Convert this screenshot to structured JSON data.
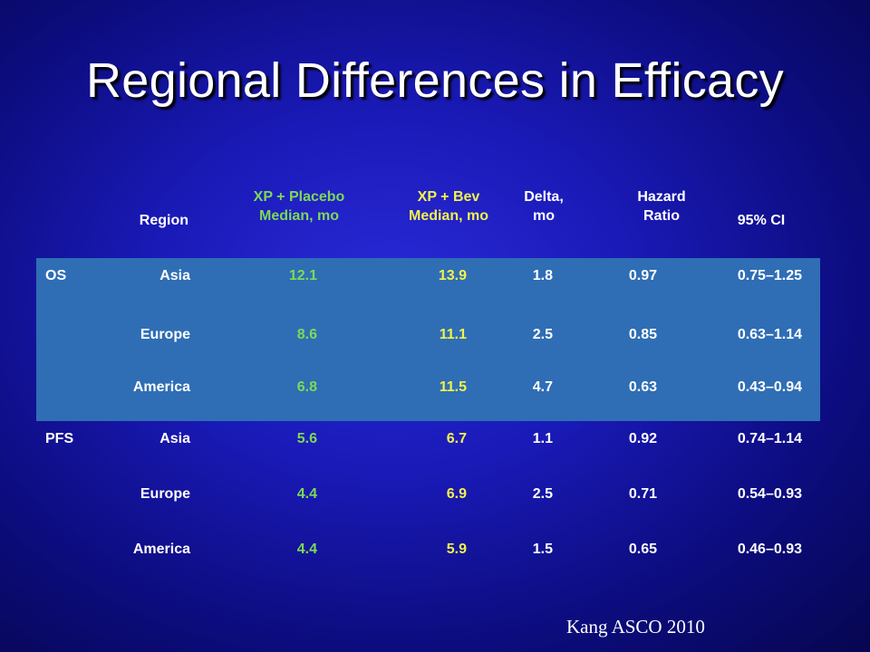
{
  "slide": {
    "title": "Regional Differences in Efficacy",
    "citation": "Kang ASCO 2010"
  },
  "table": {
    "headers": {
      "region": "Region",
      "placebo_line1": "XP + Placebo",
      "placebo_line2": "Median, mo",
      "bev_line1": "XP + Bev",
      "bev_line2": "Median, mo",
      "delta_line1": "Delta,",
      "delta_line2": "mo",
      "hr_line1": "Hazard",
      "hr_line2": "Ratio",
      "ci": "95% CI"
    },
    "rows": [
      {
        "metric": "OS",
        "region": "Asia",
        "placebo": "12.1",
        "bev": "13.9",
        "delta": "1.8",
        "hr": "0.97",
        "ci": "0.75–1.25"
      },
      {
        "metric": "",
        "region": "Europe",
        "placebo": "8.6",
        "bev": "11.1",
        "delta": "2.5",
        "hr": "0.85",
        "ci": "0.63–1.14"
      },
      {
        "metric": "",
        "region": "America",
        "placebo": "6.8",
        "bev": "11.5",
        "delta": "4.7",
        "hr": "0.63",
        "ci": "0.43–0.94"
      },
      {
        "metric": "PFS",
        "region": "Asia",
        "placebo": "5.6",
        "bev": "6.7",
        "delta": "1.1",
        "hr": "0.92",
        "ci": "0.74–1.14"
      },
      {
        "metric": "",
        "region": "Europe",
        "placebo": "4.4",
        "bev": "6.9",
        "delta": "2.5",
        "hr": "0.71",
        "ci": "0.54–0.93"
      },
      {
        "metric": "",
        "region": "America",
        "placebo": "4.4",
        "bev": "5.9",
        "delta": "1.5",
        "hr": "0.65",
        "ci": "0.46–0.93"
      }
    ],
    "colors": {
      "band": "#2f6eb5",
      "placebo_text": "#7ed956",
      "bev_text": "#f2f24a",
      "default_text": "#ffffff"
    }
  }
}
